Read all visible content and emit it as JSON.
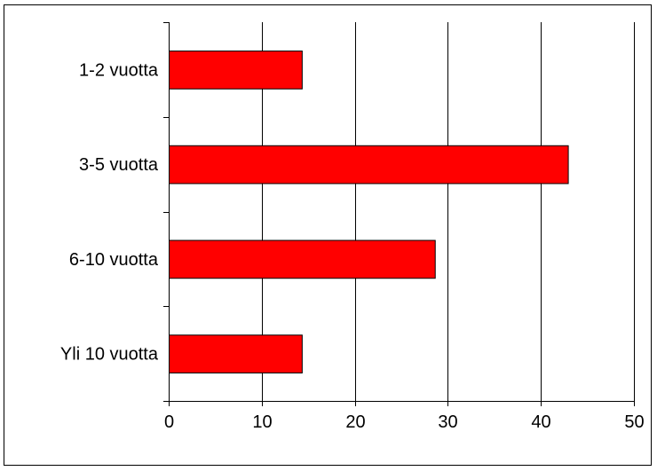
{
  "chart_data": {
    "type": "bar",
    "orientation": "horizontal",
    "categories": [
      "1-2 vuotta",
      "3-5 vuotta",
      "6-10 vuotta",
      "Yli 10 vuotta"
    ],
    "values": [
      14.3,
      42.9,
      28.6,
      14.3
    ],
    "x_ticks": [
      "0",
      "10",
      "20",
      "30",
      "40",
      "50"
    ],
    "xlim": [
      0,
      50
    ],
    "xlabel": "",
    "ylabel": "",
    "title": "",
    "grid": "vertical",
    "legend": "none",
    "bar_color": "#ff0000",
    "bar_edge_color": "#000000",
    "grid_color": "#000000"
  }
}
